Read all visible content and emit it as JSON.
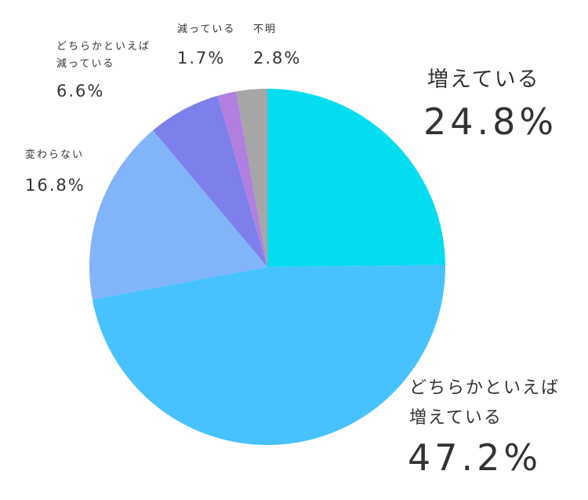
{
  "chart_data": {
    "type": "pie",
    "start_angle_deg": 0,
    "direction": "clockwise",
    "slices": [
      {
        "label": "増えている",
        "value": 24.8,
        "display": "24.8%",
        "color": "#04dcf0"
      },
      {
        "label": "どちらかといえば増えている",
        "label_lines": [
          "どちらかといえば",
          "増えている"
        ],
        "value": 47.2,
        "display": "47.2%",
        "color": "#47c2fe"
      },
      {
        "label": "変わらない",
        "value": 16.8,
        "display": "16.8%",
        "color": "#82b4fa"
      },
      {
        "label": "どちらかといえば減っている",
        "label_lines": [
          "どちらかといえば",
          "減っている"
        ],
        "value": 6.6,
        "display": "6.6%",
        "color": "#7d7feb"
      },
      {
        "label": "減っている",
        "value": 1.7,
        "display": "1.7%",
        "color": "#b07fe0"
      },
      {
        "label": "不明",
        "value": 2.8,
        "display": "2.8%",
        "color": "#a6a6a6"
      }
    ]
  }
}
